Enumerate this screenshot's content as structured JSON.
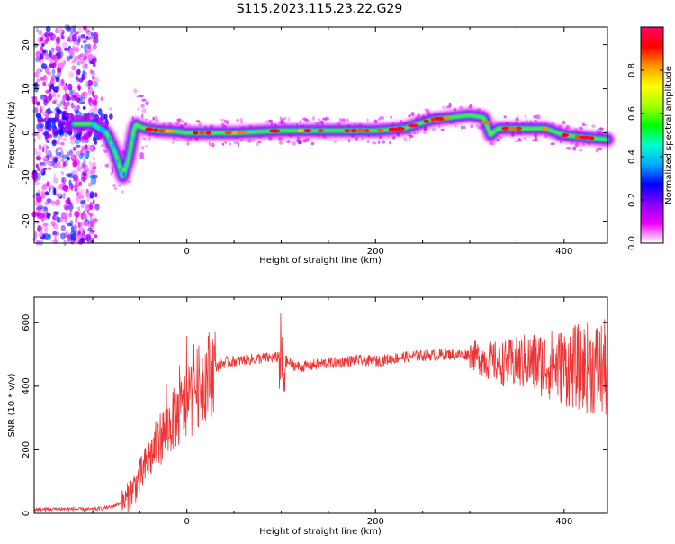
{
  "title": "S115.2023.115.23.22.G29",
  "chart_data": [
    {
      "type": "heatmap",
      "xlabel": "Height of straight line (km)",
      "ylabel": "Frequency (Hz)",
      "xlim": [
        -162,
        446
      ],
      "ylim": [
        -25,
        24
      ],
      "xticks": [
        0,
        200,
        400
      ],
      "yticks": [
        -20,
        -10,
        0,
        10,
        20
      ],
      "colorbar": {
        "label": "Normalized spectral amplitude",
        "range": [
          0,
          1
        ],
        "ticks": [
          "0.0",
          "0.2",
          "0.4",
          "0.6",
          "0.8"
        ],
        "colors": [
          "#ffffff",
          "#ee00ff",
          "#8800ff",
          "#0000ff",
          "#00aaff",
          "#00ffcc",
          "#00ff00",
          "#aaff00",
          "#ffff00",
          "#ff9900",
          "#ff0000",
          "#ff0066"
        ]
      },
      "ridge": {
        "x": [
          -120,
          -100,
          -85,
          -75,
          -68,
          -62,
          -55,
          -45,
          -30,
          -10,
          0,
          50,
          100,
          150,
          200,
          230,
          260,
          300,
          315,
          322,
          330,
          380,
          400,
          420,
          446
        ],
        "y": [
          2,
          2,
          0,
          -5,
          -10,
          -6,
          2,
          1,
          0.5,
          0.3,
          0,
          0,
          0.5,
          0.5,
          0.5,
          1,
          3,
          4,
          3.5,
          -0.5,
          1,
          1,
          -0.5,
          -1,
          -1.5
        ]
      }
    },
    {
      "type": "line",
      "xlabel": "Height of straight line (km)",
      "ylabel": "SNR (10 * v/v)",
      "xlim": [
        -162,
        446
      ],
      "ylim": [
        0,
        680
      ],
      "xticks": [
        0,
        200,
        400
      ],
      "yticks": [
        0,
        200,
        400,
        600
      ],
      "color": "#ee3333",
      "series": [
        {
          "x": [
            -162,
            -130,
            -100,
            -80,
            -65,
            -50,
            -40,
            -30,
            -20,
            -10,
            0,
            10,
            20,
            30,
            40,
            60,
            80,
            95,
            100,
            102,
            105,
            110,
            120,
            140,
            160,
            180,
            200,
            220,
            240,
            260,
            280,
            300,
            320,
            340,
            360,
            380,
            400,
            420,
            440,
            446
          ],
          "y": [
            12,
            14,
            12,
            20,
            40,
            110,
            170,
            230,
            270,
            310,
            340,
            390,
            430,
            460,
            475,
            482,
            488,
            490,
            505,
            410,
            480,
            470,
            460,
            470,
            475,
            482,
            478,
            488,
            495,
            498,
            500,
            500,
            480,
            470,
            475,
            470,
            460,
            460,
            455,
            450
          ]
        }
      ]
    }
  ]
}
